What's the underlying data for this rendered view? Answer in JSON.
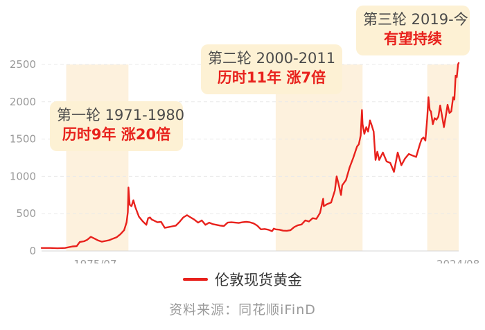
{
  "chart_data": {
    "type": "line",
    "title": "",
    "xlabel": "",
    "ylabel": "",
    "ylim": [
      0,
      2500
    ],
    "xlim": [
      "1968-04",
      "2024-09"
    ],
    "yticks": [
      0,
      500,
      1000,
      1500,
      2000,
      2500
    ],
    "xtick_labels": [
      {
        "x": "1975-07",
        "label": "1975/07"
      },
      {
        "x": "2024-08",
        "label": "2024/08"
      }
    ],
    "grid": "horizontal",
    "legend": "bottom",
    "series": [
      {
        "name": "伦敦现货黄金",
        "color": "#e8211c",
        "x": [
          "1968-04",
          "1969-06",
          "1970-06",
          "1971-06",
          "1972-06",
          "1973-01",
          "1973-06",
          "1974-01",
          "1974-06",
          "1974-12",
          "1975-06",
          "1975-12",
          "1976-06",
          "1976-12",
          "1977-06",
          "1977-12",
          "1978-06",
          "1978-12",
          "1979-06",
          "1979-10",
          "1979-12",
          "1980-01",
          "1980-03",
          "1980-06",
          "1980-09",
          "1980-12",
          "1981-06",
          "1981-12",
          "1982-06",
          "1982-09",
          "1982-12",
          "1983-03",
          "1983-06",
          "1983-12",
          "1984-06",
          "1984-12",
          "1985-06",
          "1985-12",
          "1986-06",
          "1986-12",
          "1987-06",
          "1987-12",
          "1988-06",
          "1988-12",
          "1989-06",
          "1989-12",
          "1990-06",
          "1990-12",
          "1991-06",
          "1991-12",
          "1992-06",
          "1992-12",
          "1993-06",
          "1993-12",
          "1994-06",
          "1994-12",
          "1995-06",
          "1995-12",
          "1996-06",
          "1996-12",
          "1997-06",
          "1997-12",
          "1998-06",
          "1998-12",
          "1999-06",
          "1999-09",
          "1999-12",
          "2000-06",
          "2000-12",
          "2001-06",
          "2001-12",
          "2002-06",
          "2002-12",
          "2003-06",
          "2003-12",
          "2004-06",
          "2004-12",
          "2005-06",
          "2005-12",
          "2006-05",
          "2006-06",
          "2006-12",
          "2007-06",
          "2007-12",
          "2008-03",
          "2008-06",
          "2008-10",
          "2008-12",
          "2009-06",
          "2009-12",
          "2010-06",
          "2010-12",
          "2011-03",
          "2011-06",
          "2011-08",
          "2011-09",
          "2011-12",
          "2012-03",
          "2012-06",
          "2012-09",
          "2012-12",
          "2013-03",
          "2013-06",
          "2013-09",
          "2013-12",
          "2014-06",
          "2014-12",
          "2015-06",
          "2015-12",
          "2016-06",
          "2016-12",
          "2017-06",
          "2017-12",
          "2018-06",
          "2018-12",
          "2019-06",
          "2019-09",
          "2019-12",
          "2020-03",
          "2020-06",
          "2020-08",
          "2020-10",
          "2020-12",
          "2021-03",
          "2021-06",
          "2021-09",
          "2021-12",
          "2022-03",
          "2022-06",
          "2022-09",
          "2022-12",
          "2023-03",
          "2023-06",
          "2023-09",
          "2023-12",
          "2024-02",
          "2024-04",
          "2024-06",
          "2024-08",
          "2024-09"
        ],
        "values": [
          40,
          40,
          36,
          40,
          60,
          65,
          120,
          130,
          150,
          190,
          165,
          140,
          125,
          135,
          145,
          165,
          185,
          225,
          280,
          385,
          520,
          850,
          620,
          600,
          680,
          590,
          460,
          400,
          350,
          440,
          450,
          420,
          410,
          385,
          390,
          310,
          320,
          330,
          340,
          390,
          450,
          480,
          450,
          420,
          380,
          410,
          350,
          380,
          360,
          350,
          340,
          335,
          380,
          385,
          380,
          375,
          385,
          390,
          385,
          370,
          340,
          290,
          295,
          285,
          265,
          300,
          290,
          285,
          272,
          270,
          278,
          320,
          345,
          355,
          410,
          395,
          440,
          430,
          510,
          700,
          600,
          630,
          650,
          810,
          1000,
          900,
          750,
          880,
          950,
          1120,
          1250,
          1400,
          1430,
          1550,
          1890,
          1700,
          1570,
          1660,
          1600,
          1750,
          1680,
          1600,
          1220,
          1330,
          1220,
          1320,
          1200,
          1180,
          1060,
          1320,
          1150,
          1240,
          1300,
          1280,
          1260,
          1430,
          1500,
          1520,
          1480,
          1780,
          2060,
          1890,
          1870,
          1700,
          1780,
          1760,
          1800,
          1950,
          1810,
          1660,
          1800,
          1960,
          1850,
          1870,
          2060,
          2030,
          2350,
          2330,
          2500,
          2520
        ]
      }
    ],
    "highlights": [
      {
        "start": "1971-08",
        "end": "1980-01",
        "color": "#fdf1dd"
      },
      {
        "start": "1999-12",
        "end": "2011-09",
        "color": "#fdf1dd"
      },
      {
        "start": "2020-06",
        "end": "2024-09",
        "color": "#fdf1dd"
      }
    ],
    "annotations": [
      {
        "title": "第一轮 1971-1980",
        "subtitle": "历时9年 涨20倍"
      },
      {
        "title": "第二轮 2000-2011",
        "subtitle": "历时11年 涨7倍"
      },
      {
        "title": "第三轮 2019-今",
        "subtitle": "有望持续"
      }
    ]
  },
  "legend": {
    "label": "伦敦现货黄金"
  },
  "source": "资料来源：同花顺iFinD"
}
